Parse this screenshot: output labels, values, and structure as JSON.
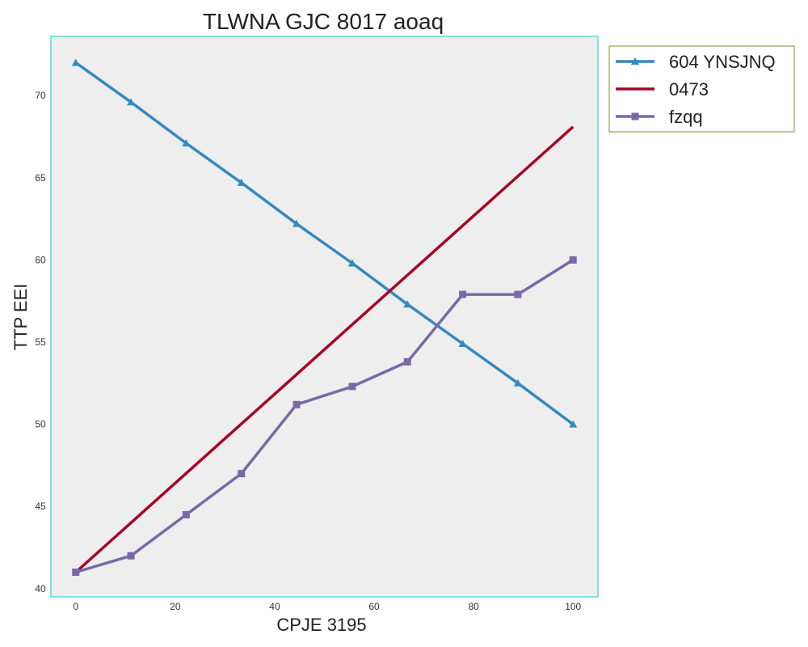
{
  "chart_data": {
    "type": "line",
    "title": "TLWNA GJC 8017 aoaq",
    "xlabel": "CPJE 3195",
    "ylabel": "TTP EEI",
    "xlim": [
      -5,
      105
    ],
    "ylim": [
      39.5,
      73.6
    ],
    "xticks": [
      0,
      20,
      40,
      60,
      80,
      100
    ],
    "yticks": [
      40,
      45,
      50,
      55,
      60,
      65,
      70
    ],
    "grid": false,
    "legend": "top-right, outside plot",
    "series": [
      {
        "name": "604 YNSJNQ",
        "color": "#348ABD",
        "marker": "triangle",
        "x": [
          0,
          11.1,
          22.2,
          33.3,
          44.4,
          55.6,
          66.7,
          77.8,
          88.9,
          100
        ],
        "y": [
          72.0,
          69.6,
          67.1,
          64.7,
          62.2,
          59.8,
          57.3,
          54.9,
          52.5,
          50.0
        ]
      },
      {
        "name": "0473",
        "color": "#A60628",
        "marker": "none",
        "x": [
          0,
          100
        ],
        "y": [
          41.0,
          68.1
        ]
      },
      {
        "name": "fzqq",
        "color": "#7A68A6",
        "marker": "square",
        "x": [
          0,
          11.1,
          22.2,
          33.3,
          44.4,
          55.6,
          66.7,
          77.8,
          88.9,
          100
        ],
        "y": [
          41.0,
          42.0,
          44.5,
          47.0,
          51.2,
          52.3,
          53.8,
          57.9,
          57.9,
          60.0
        ]
      }
    ]
  }
}
